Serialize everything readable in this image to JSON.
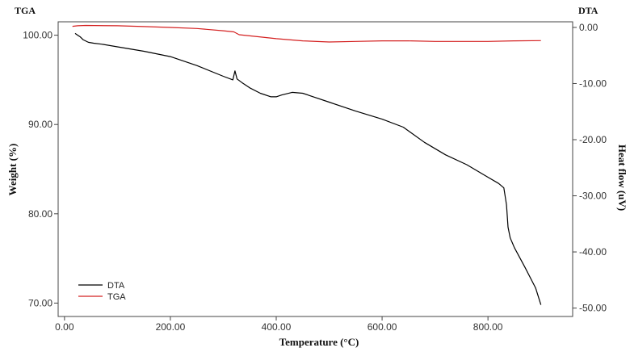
{
  "chart_data": {
    "type": "line",
    "corner_left": "TGA",
    "corner_right": "DTA",
    "xlabel": "Temperature (°C)",
    "ylabel": "Weight (%)",
    "y2label": "Heat flow (uV)",
    "xlim": [
      -12,
      960
    ],
    "ylim": [
      68.5,
      101.5
    ],
    "y2lim": [
      -51.5,
      1.0
    ],
    "x_ticks": [
      0,
      200,
      400,
      600,
      800
    ],
    "x_tick_labels": [
      "0.00",
      "200.00",
      "400.00",
      "600.00",
      "800.00"
    ],
    "y_ticks": [
      70,
      80,
      90,
      100
    ],
    "y_tick_labels": [
      "70.00",
      "80.00",
      "90.00",
      "100.00"
    ],
    "y2_ticks": [
      0,
      -10,
      -20,
      -30,
      -40,
      -50
    ],
    "y2_tick_labels": [
      "0.00",
      "-10.00",
      "-20.00",
      "-30.00",
      "-40.00",
      "-50.00"
    ],
    "grid": false,
    "legend_position": "bottom-left",
    "series": [
      {
        "name": "DTA",
        "axis": "y",
        "color": "#000000",
        "x": [
          20,
          25,
          30,
          35,
          45,
          55,
          70,
          100,
          150,
          200,
          250,
          300,
          318,
          322,
          326,
          335,
          350,
          370,
          390,
          400,
          410,
          430,
          450,
          470,
          500,
          550,
          600,
          640,
          680,
          720,
          760,
          800,
          820,
          830,
          835,
          838,
          842,
          850,
          870,
          890,
          900
        ],
        "y": [
          100.2,
          100.0,
          99.8,
          99.5,
          99.2,
          99.1,
          99.0,
          98.7,
          98.2,
          97.6,
          96.6,
          95.4,
          95.0,
          96.0,
          95.1,
          94.7,
          94.1,
          93.5,
          93.1,
          93.1,
          93.3,
          93.6,
          93.5,
          93.1,
          92.5,
          91.5,
          90.6,
          89.7,
          88.0,
          86.6,
          85.5,
          84.1,
          83.4,
          82.9,
          81.0,
          78.5,
          77.3,
          76.2,
          74.0,
          71.7,
          69.8
        ]
      },
      {
        "name": "TGA",
        "axis": "y2",
        "color": "#d42020",
        "x": [
          15,
          25,
          40,
          100,
          150,
          200,
          250,
          300,
          320,
          330,
          350,
          400,
          450,
          500,
          550,
          600,
          650,
          700,
          750,
          800,
          850,
          900
        ],
        "y": [
          0.2,
          0.3,
          0.35,
          0.3,
          0.15,
          0.0,
          -0.2,
          -0.6,
          -0.8,
          -1.3,
          -1.5,
          -2.0,
          -2.4,
          -2.6,
          -2.5,
          -2.4,
          -2.4,
          -2.5,
          -2.5,
          -2.5,
          -2.4,
          -2.35
        ]
      }
    ]
  }
}
